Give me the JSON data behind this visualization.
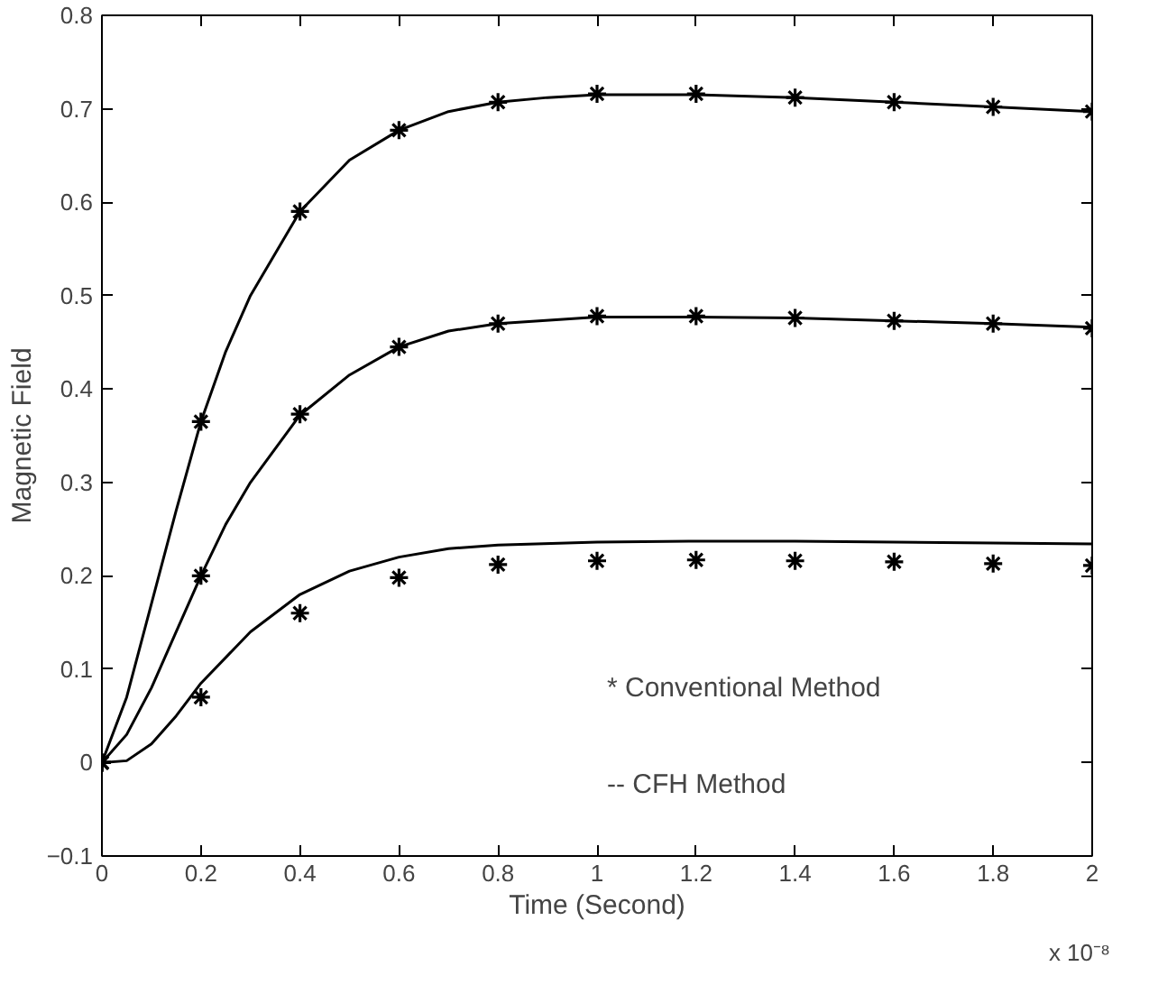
{
  "chart_data": {
    "type": "line",
    "xlabel": "Time (Second)",
    "ylabel": "Magnetic Field",
    "xlim": [
      0,
      2
    ],
    "ylim": [
      -0.1,
      0.8
    ],
    "xticks": [
      0,
      0.2,
      0.4,
      0.6,
      0.8,
      1,
      1.2,
      1.4,
      1.6,
      1.8,
      2
    ],
    "yticks": [
      -0.1,
      0,
      0.1,
      0.2,
      0.3,
      0.4,
      0.5,
      0.6,
      0.7,
      0.8
    ],
    "grid": false,
    "annotations": [
      "* Conventional Method",
      "-- CFH Method",
      "x 10⁻⁸"
    ],
    "series": [
      {
        "color": "#000000",
        "line_style": "solid",
        "marker": "none",
        "x": [
          0,
          0.05,
          0.1,
          0.15,
          0.2,
          0.25,
          0.3,
          0.4,
          0.5,
          0.6,
          0.7,
          0.8,
          0.9,
          1.0,
          1.2,
          1.4,
          1.6,
          1.8,
          2.0
        ],
        "values": [
          0,
          0.07,
          0.17,
          0.27,
          0.365,
          0.44,
          0.5,
          0.59,
          0.645,
          0.677,
          0.697,
          0.707,
          0.712,
          0.715,
          0.715,
          0.712,
          0.707,
          0.702,
          0.697
        ]
      },
      {
        "color": "#000000",
        "line_style": "solid",
        "marker": "none",
        "x": [
          0,
          0.05,
          0.1,
          0.15,
          0.2,
          0.25,
          0.3,
          0.4,
          0.5,
          0.6,
          0.7,
          0.8,
          1.0,
          1.2,
          1.4,
          1.6,
          1.8,
          2.0
        ],
        "values": [
          0,
          0.03,
          0.08,
          0.14,
          0.2,
          0.255,
          0.3,
          0.372,
          0.415,
          0.445,
          0.462,
          0.47,
          0.477,
          0.477,
          0.476,
          0.473,
          0.47,
          0.466
        ]
      },
      {
        "color": "#000000",
        "line_style": "solid",
        "marker": "none",
        "x": [
          0,
          0.05,
          0.1,
          0.15,
          0.2,
          0.3,
          0.4,
          0.5,
          0.6,
          0.7,
          0.8,
          1.0,
          1.2,
          1.4,
          1.6,
          1.8,
          2.0
        ],
        "values": [
          0,
          0.002,
          0.02,
          0.05,
          0.085,
          0.14,
          0.18,
          0.205,
          0.22,
          0.229,
          0.233,
          0.236,
          0.237,
          0.237,
          0.236,
          0.235,
          0.234
        ]
      },
      {
        "type": "scatter",
        "color": "#000000",
        "marker": "cross",
        "x": [
          0,
          0.2,
          0.4,
          0.6,
          0.8,
          1.0,
          1.2,
          1.4,
          1.6,
          1.8,
          2.0
        ],
        "values": [
          0,
          0.365,
          0.59,
          0.677,
          0.707,
          0.716,
          0.716,
          0.712,
          0.707,
          0.702,
          0.697
        ]
      },
      {
        "type": "scatter",
        "color": "#000000",
        "marker": "cross",
        "x": [
          0,
          0.2,
          0.4,
          0.6,
          0.8,
          1.0,
          1.2,
          1.4,
          1.6,
          1.8,
          2.0
        ],
        "values": [
          0,
          0.2,
          0.373,
          0.445,
          0.47,
          0.478,
          0.478,
          0.476,
          0.473,
          0.47,
          0.465
        ]
      },
      {
        "type": "scatter",
        "color": "#000000",
        "marker": "cross",
        "x": [
          0,
          0.2,
          0.4,
          0.6,
          0.8,
          1.0,
          1.2,
          1.4,
          1.6,
          1.8,
          2.0
        ],
        "values": [
          0,
          0.07,
          0.16,
          0.198,
          0.212,
          0.216,
          0.217,
          0.216,
          0.215,
          0.213,
          0.211
        ]
      }
    ]
  }
}
